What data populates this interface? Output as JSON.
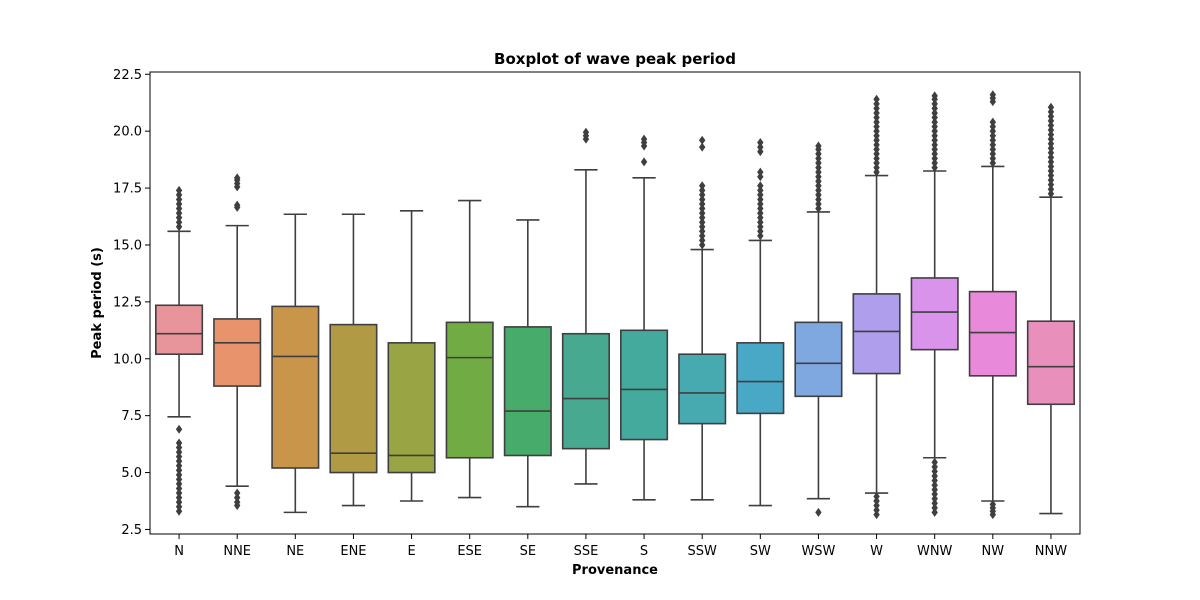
{
  "chart_data": {
    "type": "boxplot",
    "title": "Boxplot of wave peak period",
    "xlabel": "Provenance",
    "ylabel": "Peak period (s)",
    "ylim": [
      2.3,
      22.6
    ],
    "yticks": [
      2.5,
      5.0,
      7.5,
      10.0,
      12.5,
      15.0,
      17.5,
      20.0,
      22.5
    ],
    "ytick_labels": [
      "2.5",
      "5.0",
      "7.5",
      "10.0",
      "12.5",
      "15.0",
      "17.5",
      "20.0",
      "22.5"
    ],
    "grid": false,
    "categories": [
      "N",
      "NNE",
      "NE",
      "ENE",
      "E",
      "ESE",
      "SE",
      "SSE",
      "S",
      "SSW",
      "SW",
      "WSW",
      "W",
      "WNW",
      "NW",
      "NNW"
    ],
    "colors": [
      "#e8949b",
      "#e8936c",
      "#c9954b",
      "#b09b44",
      "#99a444",
      "#70ab44",
      "#47ab6c",
      "#47a98f",
      "#45aa9e",
      "#47aab0",
      "#4aa8c7",
      "#80a8e0",
      "#ae9eeb",
      "#d993ea",
      "#e88ad9",
      "#e88fbb"
    ],
    "boxes": [
      {
        "q1": 10.2,
        "median": 11.1,
        "q3": 12.35,
        "whislo": 7.45,
        "whishi": 15.6,
        "fliers_low": [
          3.3,
          3.5,
          3.7,
          3.9,
          4.1,
          4.3,
          4.5,
          4.7,
          4.9,
          5.1,
          5.3,
          5.5,
          5.7,
          5.9,
          6.1,
          6.3,
          6.9
        ],
        "fliers_high": [
          15.8,
          16.0,
          16.2,
          16.4,
          16.6,
          16.8,
          17.0,
          17.2,
          17.4
        ]
      },
      {
        "q1": 8.8,
        "median": 10.7,
        "q3": 11.75,
        "whislo": 4.4,
        "whishi": 15.85,
        "fliers_low": [
          3.55,
          3.7,
          3.9,
          4.1
        ],
        "fliers_high": [
          16.65,
          16.75,
          17.55,
          17.7,
          17.85,
          17.95
        ]
      },
      {
        "q1": 5.2,
        "median": 10.1,
        "q3": 12.3,
        "whislo": 3.25,
        "whishi": 16.35,
        "fliers_low": [],
        "fliers_high": []
      },
      {
        "q1": 5.0,
        "median": 5.85,
        "q3": 11.5,
        "whislo": 3.55,
        "whishi": 16.35,
        "fliers_low": [],
        "fliers_high": []
      },
      {
        "q1": 5.0,
        "median": 5.75,
        "q3": 10.7,
        "whislo": 3.75,
        "whishi": 16.5,
        "fliers_low": [],
        "fliers_high": []
      },
      {
        "q1": 5.65,
        "median": 10.05,
        "q3": 11.6,
        "whislo": 3.9,
        "whishi": 16.95,
        "fliers_low": [],
        "fliers_high": []
      },
      {
        "q1": 5.75,
        "median": 7.7,
        "q3": 11.4,
        "whislo": 3.5,
        "whishi": 16.1,
        "fliers_low": [],
        "fliers_high": []
      },
      {
        "q1": 6.05,
        "median": 8.25,
        "q3": 11.1,
        "whislo": 4.5,
        "whishi": 18.3,
        "fliers_low": [],
        "fliers_high": [
          19.65,
          19.8,
          19.95
        ]
      },
      {
        "q1": 6.45,
        "median": 8.65,
        "q3": 11.25,
        "whislo": 3.8,
        "whishi": 17.95,
        "fliers_low": [],
        "fliers_high": [
          18.65,
          19.35,
          19.5,
          19.65
        ]
      },
      {
        "q1": 7.15,
        "median": 8.5,
        "q3": 10.2,
        "whislo": 3.8,
        "whishi": 14.8,
        "fliers_low": [],
        "fliers_high": [
          15.0,
          15.2,
          15.4,
          15.6,
          15.8,
          16.0,
          16.2,
          16.4,
          16.6,
          16.8,
          17.0,
          17.2,
          17.4,
          17.6,
          19.3,
          19.6
        ]
      },
      {
        "q1": 7.6,
        "median": 9.0,
        "q3": 10.7,
        "whislo": 3.55,
        "whishi": 15.2,
        "fliers_low": [],
        "fliers_high": [
          15.4,
          15.6,
          15.8,
          16.0,
          16.2,
          16.4,
          16.6,
          16.8,
          17.0,
          17.2,
          17.4,
          17.6,
          18.0,
          18.2,
          19.1,
          19.3,
          19.5
        ]
      },
      {
        "q1": 8.35,
        "median": 9.8,
        "q3": 11.6,
        "whislo": 3.85,
        "whishi": 16.45,
        "fliers_low": [
          3.25
        ],
        "fliers_high": [
          16.6,
          16.8,
          17.0,
          17.2,
          17.4,
          17.6,
          17.8,
          18.0,
          18.2,
          18.4,
          18.6,
          18.8,
          19.0,
          19.2,
          19.35
        ]
      },
      {
        "q1": 9.35,
        "median": 11.2,
        "q3": 12.85,
        "whislo": 4.1,
        "whishi": 18.05,
        "fliers_low": [
          3.15,
          3.35,
          3.55,
          3.75,
          3.95
        ],
        "fliers_high": [
          18.2,
          18.4,
          18.6,
          18.8,
          19.0,
          19.2,
          19.4,
          19.6,
          19.8,
          20.0,
          20.2,
          20.4,
          20.6,
          20.8,
          21.0,
          21.2,
          21.4
        ]
      },
      {
        "q1": 10.4,
        "median": 12.05,
        "q3": 13.55,
        "whislo": 5.65,
        "whishi": 18.25,
        "fliers_low": [
          3.25,
          3.45,
          3.65,
          3.85,
          4.05,
          4.25,
          4.45,
          4.65,
          4.85,
          5.05,
          5.25,
          5.45
        ],
        "fliers_high": [
          18.4,
          18.6,
          18.8,
          19.0,
          19.2,
          19.4,
          19.6,
          19.8,
          20.0,
          20.2,
          20.4,
          20.6,
          20.8,
          21.0,
          21.2,
          21.4,
          21.55
        ]
      },
      {
        "q1": 9.25,
        "median": 11.15,
        "q3": 12.95,
        "whislo": 3.75,
        "whishi": 18.45,
        "fliers_low": [
          3.15,
          3.3,
          3.45,
          3.6
        ],
        "fliers_high": [
          18.6,
          18.8,
          19.0,
          19.2,
          19.4,
          19.6,
          19.8,
          20.0,
          20.2,
          20.4,
          21.3,
          21.45,
          21.6
        ]
      },
      {
        "q1": 8.0,
        "median": 9.65,
        "q3": 11.65,
        "whislo": 3.2,
        "whishi": 17.1,
        "fliers_low": [],
        "fliers_high": [
          17.25,
          17.45,
          17.65,
          17.85,
          18.05,
          18.25,
          18.45,
          18.65,
          18.85,
          19.05,
          19.25,
          19.45,
          19.65,
          19.85,
          20.05,
          20.25,
          20.45,
          20.65,
          20.85,
          21.05
        ]
      }
    ]
  }
}
